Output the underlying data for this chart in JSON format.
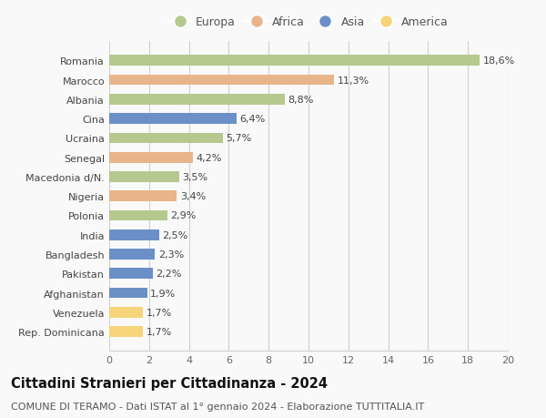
{
  "categories": [
    "Rep. Dominicana",
    "Venezuela",
    "Afghanistan",
    "Pakistan",
    "Bangladesh",
    "India",
    "Polonia",
    "Nigeria",
    "Macedonia d/N.",
    "Senegal",
    "Ucraina",
    "Cina",
    "Albania",
    "Marocco",
    "Romania"
  ],
  "values": [
    1.7,
    1.7,
    1.9,
    2.2,
    2.3,
    2.5,
    2.9,
    3.4,
    3.5,
    4.2,
    5.7,
    6.4,
    8.8,
    11.3,
    18.6
  ],
  "labels": [
    "1,7%",
    "1,7%",
    "1,9%",
    "2,2%",
    "2,3%",
    "2,5%",
    "2,9%",
    "3,4%",
    "3,5%",
    "4,2%",
    "5,7%",
    "6,4%",
    "8,8%",
    "11,3%",
    "18,6%"
  ],
  "continents": [
    "America",
    "America",
    "Asia",
    "Asia",
    "Asia",
    "Asia",
    "Europa",
    "Africa",
    "Europa",
    "Africa",
    "Europa",
    "Asia",
    "Europa",
    "Africa",
    "Europa"
  ],
  "colors": {
    "Europa": "#b5c98e",
    "Africa": "#e8b48a",
    "Asia": "#6d8fc7",
    "America": "#f5d47a"
  },
  "legend_order": [
    "Europa",
    "Africa",
    "Asia",
    "America"
  ],
  "xlim": [
    0,
    20
  ],
  "xticks": [
    0,
    2,
    4,
    6,
    8,
    10,
    12,
    14,
    16,
    18,
    20
  ],
  "title": "Cittadini Stranieri per Cittadinanza - 2024",
  "subtitle": "COMUNE DI TERAMO - Dati ISTAT al 1° gennaio 2024 - Elaborazione TUTTITALIA.IT",
  "background_color": "#f9f9f9",
  "grid_color": "#d0d0d0",
  "bar_height": 0.55,
  "title_fontsize": 10.5,
  "subtitle_fontsize": 8,
  "tick_fontsize": 8,
  "label_fontsize": 8,
  "legend_fontsize": 9
}
